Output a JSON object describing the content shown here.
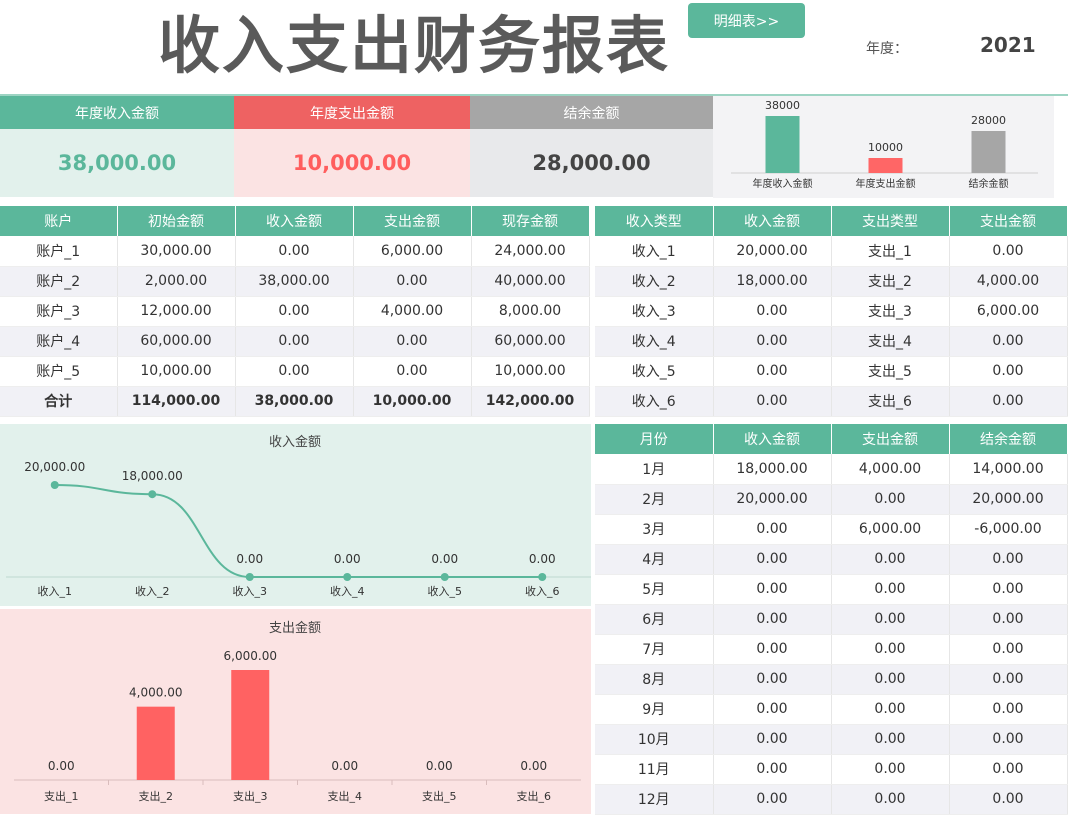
{
  "header": {
    "title": "收入支出财务报表",
    "detail_button": "明细表>>",
    "year_label": "年度：",
    "year_value": "2021"
  },
  "summary": {
    "income_label": "年度收入金额",
    "income_value": "38,000.00",
    "expense_label": "年度支出金额",
    "expense_value": "10,000.00",
    "balance_label": "结余金额",
    "balance_value": "28,000.00"
  },
  "accounts": {
    "headers": [
      "账户",
      "初始金额",
      "收入金额",
      "支出金额",
      "现存金额"
    ],
    "rows": [
      [
        "账户_1",
        "30,000.00",
        "0.00",
        "6,000.00",
        "24,000.00"
      ],
      [
        "账户_2",
        "2,000.00",
        "38,000.00",
        "0.00",
        "40,000.00"
      ],
      [
        "账户_3",
        "12,000.00",
        "0.00",
        "4,000.00",
        "8,000.00"
      ],
      [
        "账户_4",
        "60,000.00",
        "0.00",
        "0.00",
        "60,000.00"
      ],
      [
        "账户_5",
        "10,000.00",
        "0.00",
        "0.00",
        "10,000.00"
      ]
    ],
    "total": [
      "合计",
      "114,000.00",
      "38,000.00",
      "10,000.00",
      "142,000.00"
    ]
  },
  "types": {
    "headers": [
      "收入类型",
      "收入金额",
      "支出类型",
      "支出金额"
    ],
    "rows": [
      [
        "收入_1",
        "20,000.00",
        "支出_1",
        "0.00"
      ],
      [
        "收入_2",
        "18,000.00",
        "支出_2",
        "4,000.00"
      ],
      [
        "收入_3",
        "0.00",
        "支出_3",
        "6,000.00"
      ],
      [
        "收入_4",
        "0.00",
        "支出_4",
        "0.00"
      ],
      [
        "收入_5",
        "0.00",
        "支出_5",
        "0.00"
      ],
      [
        "收入_6",
        "0.00",
        "支出_6",
        "0.00"
      ]
    ]
  },
  "monthly": {
    "headers": [
      "月份",
      "收入金额",
      "支出金额",
      "结余金额"
    ],
    "rows": [
      [
        "1月",
        "18,000.00",
        "4,000.00",
        "14,000.00"
      ],
      [
        "2月",
        "20,000.00",
        "0.00",
        "20,000.00"
      ],
      [
        "3月",
        "0.00",
        "6,000.00",
        "-6,000.00"
      ],
      [
        "4月",
        "0.00",
        "0.00",
        "0.00"
      ],
      [
        "5月",
        "0.00",
        "0.00",
        "0.00"
      ],
      [
        "6月",
        "0.00",
        "0.00",
        "0.00"
      ],
      [
        "7月",
        "0.00",
        "0.00",
        "0.00"
      ],
      [
        "8月",
        "0.00",
        "0.00",
        "0.00"
      ],
      [
        "9月",
        "0.00",
        "0.00",
        "0.00"
      ],
      [
        "10月",
        "0.00",
        "0.00",
        "0.00"
      ],
      [
        "11月",
        "0.00",
        "0.00",
        "0.00"
      ],
      [
        "12月",
        "0.00",
        "0.00",
        "0.00"
      ]
    ]
  },
  "colors": {
    "green": "#5bb79b",
    "red": "#ee6262",
    "gray": "#a6a6a6",
    "green_bg": "#e2f1ec",
    "red_bg": "#fbe3e3",
    "gray_bg": "#e8e9eb"
  },
  "chart_data": [
    {
      "type": "bar",
      "categories": [
        "年度收入金额",
        "年度支出金额",
        "结余金额"
      ],
      "values": [
        38000,
        10000,
        28000
      ],
      "data_labels": [
        "38000",
        "10000",
        "28000"
      ],
      "colors": [
        "#5bb79b",
        "#ff6666",
        "#a6a6a6"
      ],
      "ylim": [
        0,
        40000
      ],
      "grid": false
    },
    {
      "type": "line",
      "title": "收入金额",
      "categories": [
        "收入_1",
        "收入_2",
        "收入_3",
        "收入_4",
        "收入_5",
        "收入_6"
      ],
      "values": [
        20000,
        18000,
        0,
        0,
        0,
        0
      ],
      "data_labels": [
        "20,000.00",
        "18,000.00",
        "0.00",
        "0.00",
        "0.00",
        "0.00"
      ],
      "ylim": [
        0,
        20000
      ],
      "grid": false
    },
    {
      "type": "bar",
      "title": "支出金额",
      "categories": [
        "支出_1",
        "支出_2",
        "支出_3",
        "支出_4",
        "支出_5",
        "支出_6"
      ],
      "values": [
        0,
        4000,
        6000,
        0,
        0,
        0
      ],
      "data_labels": [
        "0.00",
        "4,000.00",
        "6,000.00",
        "0.00",
        "0.00",
        "0.00"
      ],
      "ylim": [
        0,
        6000
      ],
      "grid": false
    }
  ]
}
